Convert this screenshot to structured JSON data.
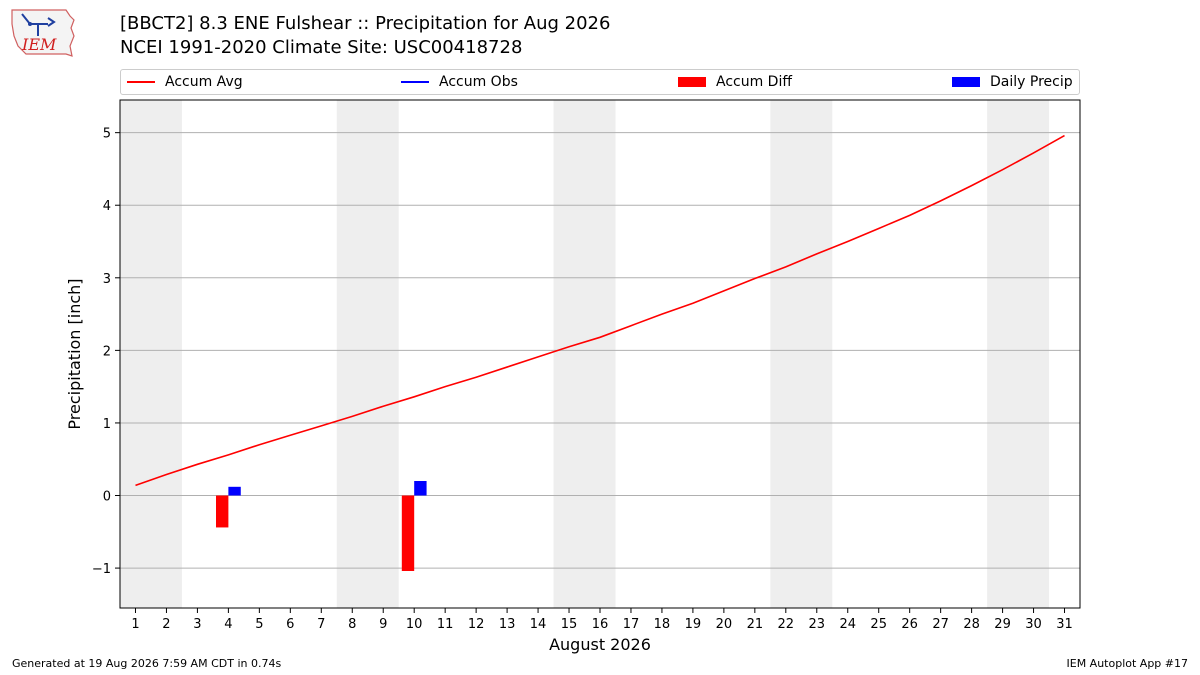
{
  "header": {
    "title": "[BBCT2] 8.3 ENE Fulshear :: Precipitation for Aug 2026",
    "subtitle": "NCEI 1991-2020 Climate Site: USC00418728",
    "logo_text": "IEM"
  },
  "legend": [
    {
      "label": "Accum Avg",
      "kind": "line",
      "color": "#ff0000"
    },
    {
      "label": "Accum Obs",
      "kind": "line",
      "color": "#0000ff"
    },
    {
      "label": "Accum Diff",
      "kind": "patch",
      "color": "#ff0000"
    },
    {
      "label": "Daily Precip",
      "kind": "patch",
      "color": "#0000ff"
    }
  ],
  "footer": {
    "generated": "Generated at 19 Aug 2026 7:59 AM CDT in 0.74s",
    "app": "IEM Autoplot App #17"
  },
  "chart_data": {
    "type": "line",
    "xlabel": "August 2026",
    "ylabel": "Precipitation [inch]",
    "x": [
      1,
      2,
      3,
      4,
      5,
      6,
      7,
      8,
      9,
      10,
      11,
      12,
      13,
      14,
      15,
      16,
      17,
      18,
      19,
      20,
      21,
      22,
      23,
      24,
      25,
      26,
      27,
      28,
      29,
      30,
      31
    ],
    "xlim": [
      0.5,
      31.5
    ],
    "ylim": [
      -1.55,
      5.45
    ],
    "yticks": [
      -1,
      0,
      1,
      2,
      3,
      4,
      5
    ],
    "ytick_labels": [
      "−1",
      "0",
      "1",
      "2",
      "3",
      "4",
      "5"
    ],
    "grid": "y",
    "weekend_shading": [
      [
        0.5,
        2.5
      ],
      [
        7.5,
        9.5
      ],
      [
        14.5,
        16.5
      ],
      [
        21.5,
        23.5
      ],
      [
        28.5,
        30.5
      ]
    ],
    "series": [
      {
        "name": "Accum Avg",
        "type": "line",
        "color": "#ff0000",
        "values": [
          0.14,
          0.29,
          0.43,
          0.56,
          0.7,
          0.83,
          0.96,
          1.09,
          1.23,
          1.36,
          1.5,
          1.63,
          1.77,
          1.91,
          2.05,
          2.18,
          2.34,
          2.5,
          2.65,
          2.82,
          2.99,
          3.15,
          3.33,
          3.5,
          3.68,
          3.86,
          4.06,
          4.27,
          4.49,
          4.72,
          4.96
        ]
      },
      {
        "name": "Accum Diff",
        "type": "bar",
        "color": "#ff0000",
        "points": [
          {
            "day": 4,
            "value": -0.44
          },
          {
            "day": 10,
            "value": -1.04
          }
        ]
      },
      {
        "name": "Daily Precip",
        "type": "bar",
        "color": "#0000ff",
        "points": [
          {
            "day": 4,
            "value": 0.12
          },
          {
            "day": 10,
            "value": 0.2
          }
        ]
      }
    ]
  }
}
